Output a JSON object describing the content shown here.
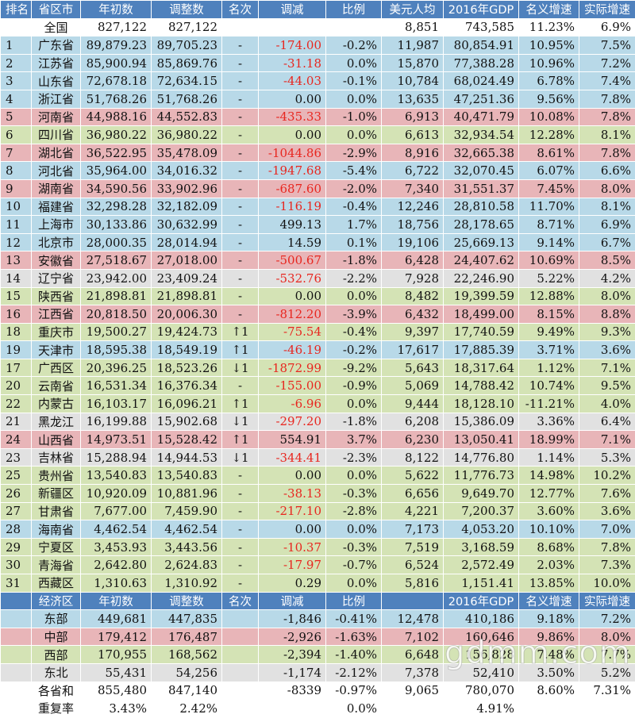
{
  "header1": [
    "排名",
    "省区市",
    "年初数",
    "调整数",
    "名次",
    "调减",
    "比例",
    "美元人均",
    "2016年GDP",
    "名义增速",
    "实际增速"
  ],
  "national": {
    "label": "全国",
    "initial": "827,122",
    "adjusted": "827,122",
    "per_capita": "8,851",
    "gdp2016": "743,585",
    "nominal": "11.23%",
    "real": "6.9%"
  },
  "provinces": [
    {
      "rank": "1",
      "name": "广东省",
      "initial": "89,879.23",
      "adjusted": "89,705.23",
      "change": "-",
      "reduce": "-174.00",
      "ratio": "-0.2%",
      "per_capita": "11,987",
      "gdp2016": "80,854.91",
      "nominal": "10.95%",
      "real": "7.5%",
      "color": "b",
      "neg": true
    },
    {
      "rank": "2",
      "name": "江苏省",
      "initial": "85,900.94",
      "adjusted": "85,869.76",
      "change": "-",
      "reduce": "-31.18",
      "ratio": "0.0%",
      "per_capita": "15,870",
      "gdp2016": "77,388.28",
      "nominal": "10.96%",
      "real": "7.2%",
      "color": "b",
      "neg": true
    },
    {
      "rank": "3",
      "name": "山东省",
      "initial": "72,678.18",
      "adjusted": "72,634.15",
      "change": "-",
      "reduce": "-44.03",
      "ratio": "-0.1%",
      "per_capita": "10,784",
      "gdp2016": "68,024.49",
      "nominal": "6.78%",
      "real": "7.4%",
      "color": "b",
      "neg": true
    },
    {
      "rank": "4",
      "name": "浙江省",
      "initial": "51,768.26",
      "adjusted": "51,768.26",
      "change": "-",
      "reduce": "0.00",
      "ratio": "0.0%",
      "per_capita": "13,635",
      "gdp2016": "47,251.36",
      "nominal": "9.56%",
      "real": "7.8%",
      "color": "b",
      "neg": false
    },
    {
      "rank": "5",
      "name": "河南省",
      "initial": "44,988.16",
      "adjusted": "44,552.83",
      "change": "-",
      "reduce": "-435.33",
      "ratio": "-1.0%",
      "per_capita": "6,913",
      "gdp2016": "40,471.79",
      "nominal": "10.08%",
      "real": "7.8%",
      "color": "p",
      "neg": true
    },
    {
      "rank": "6",
      "name": "四川省",
      "initial": "36,980.22",
      "adjusted": "36,980.22",
      "change": "-",
      "reduce": "0.00",
      "ratio": "0.0%",
      "per_capita": "6,613",
      "gdp2016": "32,934.54",
      "nominal": "12.28%",
      "real": "8.1%",
      "color": "g",
      "neg": false
    },
    {
      "rank": "7",
      "name": "湖北省",
      "initial": "36,522.95",
      "adjusted": "35,478.09",
      "change": "-",
      "reduce": "-1044.86",
      "ratio": "-2.9%",
      "per_capita": "8,916",
      "gdp2016": "32,665.38",
      "nominal": "8.61%",
      "real": "7.8%",
      "color": "p",
      "neg": true
    },
    {
      "rank": "8",
      "name": "河北省",
      "initial": "35,964.00",
      "adjusted": "34,016.32",
      "change": "-",
      "reduce": "-1947.68",
      "ratio": "-5.4%",
      "per_capita": "6,722",
      "gdp2016": "32,070.45",
      "nominal": "6.07%",
      "real": "6.6%",
      "color": "b",
      "neg": true
    },
    {
      "rank": "9",
      "name": "湖南省",
      "initial": "34,590.56",
      "adjusted": "33,902.96",
      "change": "-",
      "reduce": "-687.60",
      "ratio": "-2.0%",
      "per_capita": "7,340",
      "gdp2016": "31,551.37",
      "nominal": "7.45%",
      "real": "8.0%",
      "color": "p",
      "neg": true
    },
    {
      "rank": "10",
      "name": "福建省",
      "initial": "32,298.28",
      "adjusted": "32,182.09",
      "change": "-",
      "reduce": "-116.19",
      "ratio": "-0.4%",
      "per_capita": "12,246",
      "gdp2016": "28,810.58",
      "nominal": "11.70%",
      "real": "8.1%",
      "color": "b",
      "neg": true
    },
    {
      "rank": "11",
      "name": "上海市",
      "initial": "30,133.86",
      "adjusted": "30,632.99",
      "change": "-",
      "reduce": "499.13",
      "ratio": "1.7%",
      "per_capita": "18,756",
      "gdp2016": "28,178.65",
      "nominal": "8.71%",
      "real": "6.9%",
      "color": "b",
      "neg": false
    },
    {
      "rank": "12",
      "name": "北京市",
      "initial": "28,000.35",
      "adjusted": "28,014.94",
      "change": "-",
      "reduce": "14.59",
      "ratio": "0.1%",
      "per_capita": "19,106",
      "gdp2016": "25,669.13",
      "nominal": "9.14%",
      "real": "6.7%",
      "color": "b",
      "neg": false
    },
    {
      "rank": "13",
      "name": "安徽省",
      "initial": "27,518.67",
      "adjusted": "27,018.00",
      "change": "-",
      "reduce": "-500.67",
      "ratio": "-1.8%",
      "per_capita": "6,428",
      "gdp2016": "24,407.62",
      "nominal": "10.69%",
      "real": "8.5%",
      "color": "p",
      "neg": true
    },
    {
      "rank": "14",
      "name": "辽宁省",
      "initial": "23,942.00",
      "adjusted": "23,409.24",
      "change": "-",
      "reduce": "-532.76",
      "ratio": "-2.2%",
      "per_capita": "7,928",
      "gdp2016": "22,246.90",
      "nominal": "5.22%",
      "real": "4.2%",
      "color": "s",
      "neg": true
    },
    {
      "rank": "15",
      "name": "陕西省",
      "initial": "21,898.81",
      "adjusted": "21,898.81",
      "change": "-",
      "reduce": "0.00",
      "ratio": "0.0%",
      "per_capita": "8,482",
      "gdp2016": "19,399.59",
      "nominal": "12.88%",
      "real": "8.0%",
      "color": "g",
      "neg": false
    },
    {
      "rank": "16",
      "name": "江西省",
      "initial": "20,818.50",
      "adjusted": "20,006.30",
      "change": "-",
      "reduce": "-812.20",
      "ratio": "-3.9%",
      "per_capita": "6,432",
      "gdp2016": "18,499.00",
      "nominal": "8.15%",
      "real": "8.8%",
      "color": "p",
      "neg": true
    },
    {
      "rank": "18",
      "name": "重庆市",
      "initial": "19,500.27",
      "adjusted": "19,424.73",
      "change": "↑1",
      "reduce": "-75.54",
      "ratio": "-0.4%",
      "per_capita": "9,397",
      "gdp2016": "17,740.59",
      "nominal": "9.49%",
      "real": "9.3%",
      "color": "g",
      "neg": true
    },
    {
      "rank": "19",
      "name": "天津市",
      "initial": "18,595.38",
      "adjusted": "18,549.19",
      "change": "↑1",
      "reduce": "-46.19",
      "ratio": "-0.2%",
      "per_capita": "17,617",
      "gdp2016": "17,885.39",
      "nominal": "3.71%",
      "real": "3.6%",
      "color": "b",
      "neg": true
    },
    {
      "rank": "17",
      "name": "广西区",
      "initial": "20,396.25",
      "adjusted": "18,523.26",
      "change": "↓1",
      "reduce": "-1872.99",
      "ratio": "-9.2%",
      "per_capita": "5,643",
      "gdp2016": "18,317.64",
      "nominal": "1.12%",
      "real": "7.1%",
      "color": "g",
      "neg": true
    },
    {
      "rank": "20",
      "name": "云南省",
      "initial": "16,531.34",
      "adjusted": "16,376.34",
      "change": "-",
      "reduce": "-155.00",
      "ratio": "-0.9%",
      "per_capita": "5,069",
      "gdp2016": "14,788.42",
      "nominal": "10.74%",
      "real": "9.5%",
      "color": "g",
      "neg": true
    },
    {
      "rank": "22",
      "name": "内蒙古",
      "initial": "16,103.17",
      "adjusted": "16,096.21",
      "change": "↑1",
      "reduce": "-6.96",
      "ratio": "0.0%",
      "per_capita": "9,444",
      "gdp2016": "18,128.10",
      "nominal": "-11.21%",
      "real": "4.0%",
      "color": "g",
      "neg": true
    },
    {
      "rank": "21",
      "name": "黑龙江",
      "initial": "16,199.88",
      "adjusted": "15,902.68",
      "change": "↓1",
      "reduce": "-297.20",
      "ratio": "-1.8%",
      "per_capita": "6,208",
      "gdp2016": "15,386.09",
      "nominal": "3.36%",
      "real": "6.4%",
      "color": "s",
      "neg": true
    },
    {
      "rank": "24",
      "name": "山西省",
      "initial": "14,973.51",
      "adjusted": "15,528.42",
      "change": "↑1",
      "reduce": "554.91",
      "ratio": "3.7%",
      "per_capita": "6,230",
      "gdp2016": "13,050.41",
      "nominal": "18.99%",
      "real": "7.1%",
      "color": "p",
      "neg": false
    },
    {
      "rank": "23",
      "name": "吉林省",
      "initial": "15,288.94",
      "adjusted": "14,944.53",
      "change": "↓1",
      "reduce": "-344.41",
      "ratio": "-2.3%",
      "per_capita": "8,122",
      "gdp2016": "14,776.80",
      "nominal": "1.14%",
      "real": "5.3%",
      "color": "s",
      "neg": true
    },
    {
      "rank": "25",
      "name": "贵州省",
      "initial": "13,540.83",
      "adjusted": "13,540.83",
      "change": "-",
      "reduce": "0.00",
      "ratio": "0.0%",
      "per_capita": "5,622",
      "gdp2016": "11,776.73",
      "nominal": "14.98%",
      "real": "10.2%",
      "color": "g",
      "neg": false
    },
    {
      "rank": "26",
      "name": "新疆区",
      "initial": "10,920.09",
      "adjusted": "10,881.96",
      "change": "-",
      "reduce": "-38.13",
      "ratio": "-0.3%",
      "per_capita": "6,656",
      "gdp2016": "9,649.70",
      "nominal": "12.77%",
      "real": "7.6%",
      "color": "g",
      "neg": true
    },
    {
      "rank": "27",
      "name": "甘肃省",
      "initial": "7,677.00",
      "adjusted": "7,459.90",
      "change": "-",
      "reduce": "-217.10",
      "ratio": "-2.8%",
      "per_capita": "4,221",
      "gdp2016": "7,200.37",
      "nominal": "3.60%",
      "real": "3.6%",
      "color": "g",
      "neg": true
    },
    {
      "rank": "28",
      "name": "海南省",
      "initial": "4,462.54",
      "adjusted": "4,462.54",
      "change": "-",
      "reduce": "0.00",
      "ratio": "0.0%",
      "per_capita": "7,173",
      "gdp2016": "4,053.20",
      "nominal": "10.10%",
      "real": "7.0%",
      "color": "b",
      "neg": false
    },
    {
      "rank": "29",
      "name": "宁夏区",
      "initial": "3,453.93",
      "adjusted": "3,443.56",
      "change": "-",
      "reduce": "-10.37",
      "ratio": "-0.3%",
      "per_capita": "7,519",
      "gdp2016": "3,168.59",
      "nominal": "8.68%",
      "real": "7.8%",
      "color": "g",
      "neg": true
    },
    {
      "rank": "30",
      "name": "青海省",
      "initial": "2,642.80",
      "adjusted": "2,624.83",
      "change": "-",
      "reduce": "-17.97",
      "ratio": "-0.7%",
      "per_capita": "6,524",
      "gdp2016": "2,572.49",
      "nominal": "2.03%",
      "real": "7.3%",
      "color": "g",
      "neg": true
    },
    {
      "rank": "31",
      "name": "西藏区",
      "initial": "1,310.63",
      "adjusted": "1,310.92",
      "change": "-",
      "reduce": "0.29",
      "ratio": "0.0%",
      "per_capita": "5,816",
      "gdp2016": "1,151.41",
      "nominal": "13.85%",
      "real": "10.0%",
      "color": "g",
      "neg": false
    }
  ],
  "header2": [
    "经济区",
    "年初数",
    "调整数",
    "名次",
    "调减",
    "比例",
    "2016年GDP",
    "名义增速",
    "实际增速"
  ],
  "regions": [
    {
      "name": "东部",
      "initial": "449,681",
      "adjusted": "447,835",
      "reduce": "-1,846",
      "ratio": "-0.41%",
      "per_capita": "12,478",
      "gdp2016": "410,186",
      "nominal": "9.18%",
      "real": "7.2%",
      "color": "b"
    },
    {
      "name": "中部",
      "initial": "179,412",
      "adjusted": "176,487",
      "reduce": "-2,926",
      "ratio": "-1.63%",
      "per_capita": "7,102",
      "gdp2016": "160,646",
      "nominal": "9.86%",
      "real": "8.0%",
      "color": "p"
    },
    {
      "name": "西部",
      "initial": "170,955",
      "adjusted": "168,562",
      "reduce": "-2,394",
      "ratio": "-1.40%",
      "per_capita": "6,648",
      "gdp2016": "156,828",
      "nominal": "7.48%",
      "real": "7.7%",
      "color": "g"
    },
    {
      "name": "东北",
      "initial": "55,431",
      "adjusted": "54,256",
      "reduce": "-1,174",
      "ratio": "-2.12%",
      "per_capita": "7,378",
      "gdp2016": "52,410",
      "nominal": "3.50%",
      "real": "5.2%",
      "color": "s"
    }
  ],
  "sum_row": {
    "name": "各省和",
    "initial": "855,480",
    "adjusted": "847,140",
    "reduce": "-8339",
    "ratio": "-0.97%",
    "per_capita": "9,065",
    "gdp2016": "780,070",
    "nominal": "8.60%",
    "real": "7.31%"
  },
  "repeat_row": {
    "name": "重复率",
    "initial": "3.43%",
    "adjusted": "2.42%",
    "ratio": "0.0%",
    "gdp2016": "4.91%"
  },
  "watermark": "gdmm.com"
}
